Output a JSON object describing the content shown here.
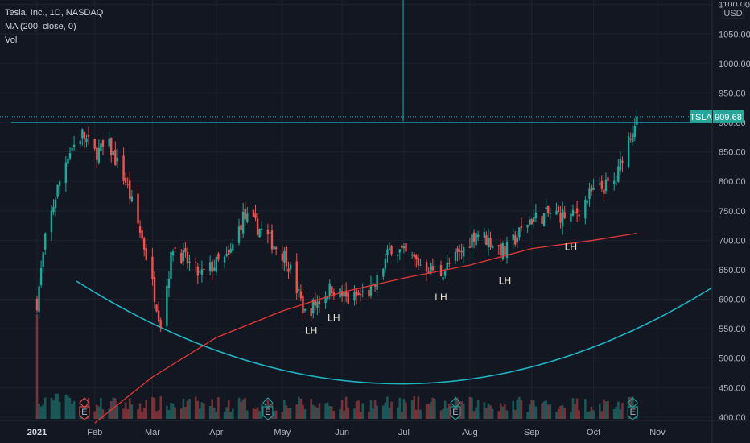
{
  "legend": {
    "symbol_line": "Tesla, Inc., 1D, NASDAQ",
    "ma_line": "MA (200, close, 0)",
    "vol_line": "Vol"
  },
  "currency": "USD",
  "colors": {
    "background": "#131722",
    "up": "#26a69a",
    "down": "#ef5350",
    "ma": "#e53935",
    "cursor": "#22a6b3",
    "arc": "#1fb4c4",
    "grid": "#1e222d"
  },
  "chart_data": {
    "type": "candlestick",
    "symbol": "TSLA",
    "last_price": "909.68",
    "price_ticks": [
      "1100.00",
      "1050.00",
      "1000.00",
      "950.00",
      "900.00",
      "850.00",
      "800.00",
      "750.00",
      "700.00",
      "650.00",
      "600.00",
      "550.00",
      "500.00",
      "450.00",
      "400.00"
    ],
    "x_ticks": [
      {
        "label": "2021",
        "date": "2021-01-04",
        "bold": true
      },
      {
        "label": "Feb",
        "date": "2021-02-01"
      },
      {
        "label": "Mar",
        "date": "2021-03-01"
      },
      {
        "label": "Apr",
        "date": "2021-04-01"
      },
      {
        "label": "May",
        "date": "2021-05-03"
      },
      {
        "label": "Jun",
        "date": "2021-06-01"
      },
      {
        "label": "Jul",
        "date": "2021-07-01"
      },
      {
        "label": "Aug",
        "date": "2021-08-02"
      },
      {
        "label": "Sep",
        "date": "2021-09-01"
      },
      {
        "label": "Oct",
        "date": "2021-10-01"
      },
      {
        "label": "Nov",
        "date": "2021-11-01"
      }
    ],
    "ylim": [
      390,
      1100
    ],
    "resistance_level": 900,
    "annotations": [
      {
        "text": "LH",
        "date": "2021-05-17",
        "price": 563
      },
      {
        "text": "LH",
        "date": "2021-05-28",
        "price": 585
      },
      {
        "text": "LH",
        "date": "2021-07-19",
        "price": 620
      },
      {
        "text": "LH",
        "date": "2021-08-19",
        "price": 648
      },
      {
        "text": "LH",
        "date": "2021-09-20",
        "price": 705
      }
    ],
    "close_anchors": [
      {
        "date": "2021-01-04",
        "close": 595
      },
      {
        "date": "2021-01-08",
        "close": 700
      },
      {
        "date": "2021-01-13",
        "close": 775
      },
      {
        "date": "2021-01-19",
        "close": 848
      },
      {
        "date": "2021-01-26",
        "close": 880
      },
      {
        "date": "2021-02-01",
        "close": 848
      },
      {
        "date": "2021-02-08",
        "close": 860
      },
      {
        "date": "2021-02-16",
        "close": 800
      },
      {
        "date": "2021-02-25",
        "close": 690
      },
      {
        "date": "2021-03-05",
        "close": 560
      },
      {
        "date": "2021-03-11",
        "close": 690
      },
      {
        "date": "2021-03-24",
        "close": 640
      },
      {
        "date": "2021-04-01",
        "close": 660
      },
      {
        "date": "2021-04-07",
        "close": 670
      },
      {
        "date": "2021-04-14",
        "close": 740
      },
      {
        "date": "2021-04-22",
        "close": 720
      },
      {
        "date": "2021-05-05",
        "close": 670
      },
      {
        "date": "2021-05-14",
        "close": 575
      },
      {
        "date": "2021-05-27",
        "close": 620
      },
      {
        "date": "2021-06-04",
        "close": 598
      },
      {
        "date": "2021-06-16",
        "close": 615
      },
      {
        "date": "2021-06-25",
        "close": 690
      },
      {
        "date": "2021-07-09",
        "close": 660
      },
      {
        "date": "2021-07-19",
        "close": 645
      },
      {
        "date": "2021-07-29",
        "close": 680
      },
      {
        "date": "2021-08-05",
        "close": 715
      },
      {
        "date": "2021-08-19",
        "close": 680
      },
      {
        "date": "2021-08-31",
        "close": 735
      },
      {
        "date": "2021-09-10",
        "close": 745
      },
      {
        "date": "2021-09-21",
        "close": 740
      },
      {
        "date": "2021-09-30",
        "close": 780
      },
      {
        "date": "2021-10-12",
        "close": 800
      },
      {
        "date": "2021-10-15",
        "close": 845
      },
      {
        "date": "2021-10-22",
        "close": 909.68
      }
    ],
    "ma200_anchors": [
      {
        "date": "2021-02-01",
        "value": 390
      },
      {
        "date": "2021-03-01",
        "value": 468
      },
      {
        "date": "2021-04-01",
        "value": 535
      },
      {
        "date": "2021-05-03",
        "value": 580
      },
      {
        "date": "2021-06-01",
        "value": 612
      },
      {
        "date": "2021-07-01",
        "value": 636
      },
      {
        "date": "2021-08-02",
        "value": 658
      },
      {
        "date": "2021-09-01",
        "value": 686
      },
      {
        "date": "2021-10-01",
        "value": 700
      },
      {
        "date": "2021-10-22",
        "value": 712
      }
    ],
    "earnings_markers": [
      {
        "label": "E",
        "date": "2021-01-27"
      },
      {
        "label": "E",
        "date": "2021-04-26"
      },
      {
        "label": "E",
        "date": "2021-07-26"
      },
      {
        "label": "E",
        "date": "2021-10-20"
      }
    ],
    "dividend_markers": [
      {
        "date": "2021-01-27"
      },
      {
        "date": "2021-04-26"
      },
      {
        "date": "2021-07-26"
      },
      {
        "date": "2021-10-20"
      }
    ]
  }
}
